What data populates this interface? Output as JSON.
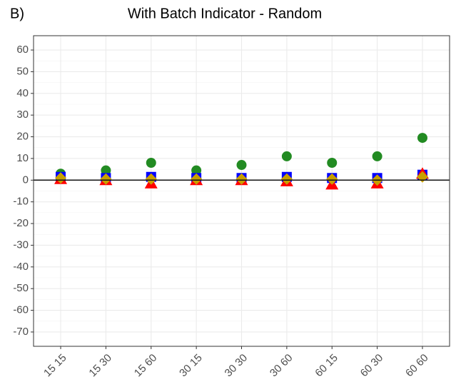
{
  "chart_data": {
    "type": "scatter",
    "panel_label": "B)",
    "title": "With Batch Indicator - Random",
    "categories": [
      "15 15",
      "15 30",
      "15 60",
      "30 15",
      "30 30",
      "30 60",
      "60 15",
      "60 30",
      "60 60"
    ],
    "series": [
      {
        "color": "#228b22",
        "marker": "circle",
        "values": [
          3,
          4.5,
          8,
          4.5,
          7,
          11,
          8,
          11,
          19.5
        ]
      },
      {
        "color": "#0000ff",
        "marker": "square",
        "values": [
          1.5,
          1,
          1.5,
          1,
          1,
          1.5,
          1,
          1,
          2.5
        ]
      },
      {
        "color": "#ff0000",
        "marker": "triangle",
        "values": [
          0.5,
          0,
          -1.5,
          0,
          0,
          -0.5,
          -2,
          -1.5,
          3
        ]
      },
      {
        "color": "#c8a000",
        "marker": "diamond",
        "values": [
          1,
          0.5,
          0.5,
          0.5,
          0.5,
          0.5,
          0.5,
          0,
          1.5
        ]
      }
    ],
    "ylim": [
      -76.6,
      66.6
    ],
    "yticks": [
      -70,
      -60,
      -50,
      -40,
      -30,
      -20,
      -10,
      0,
      10,
      20,
      30,
      40,
      50,
      60
    ],
    "reference_line": 0,
    "grid": true
  }
}
